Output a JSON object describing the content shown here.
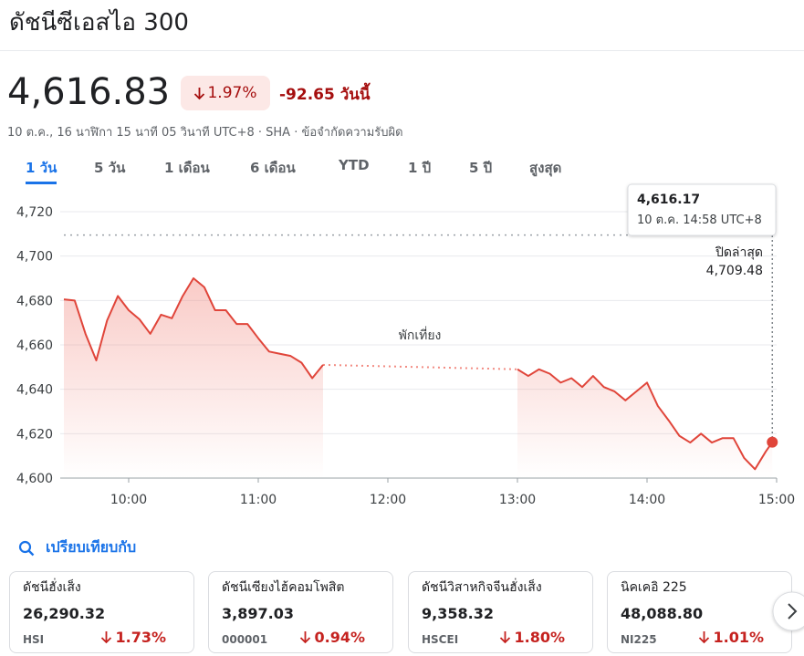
{
  "header": {
    "title": "ดัชนีซีเอสไอ 300",
    "price": "4,616.83",
    "change_percent": "1.97%",
    "change": "-92.65",
    "change_period": "วันนี้",
    "subtitle": "10 ต.ค., 16 นาฬิกา 15 นาที 05 วินาที UTC+8 · SHA · ข้อจำกัดความรับผิด"
  },
  "tabs": {
    "items": [
      "1 วัน",
      "5 วัน",
      "1 เดือน",
      "6 เดือน",
      "YTD",
      "1 ปี",
      "5 ปี",
      "สูงสุด"
    ],
    "active": 0
  },
  "chart_data": {
    "type": "line",
    "x": [
      "09:30",
      "09:35",
      "09:40",
      "09:45",
      "09:50",
      "09:55",
      "10:00",
      "10:05",
      "10:10",
      "10:15",
      "10:20",
      "10:25",
      "10:30",
      "10:35",
      "10:40",
      "10:45",
      "10:50",
      "10:55",
      "11:00",
      "11:05",
      "11:10",
      "11:15",
      "11:20",
      "11:25",
      "11:30",
      "12:00",
      "13:00",
      "13:05",
      "13:10",
      "13:15",
      "13:20",
      "13:25",
      "13:30",
      "13:35",
      "13:40",
      "13:45",
      "13:50",
      "13:55",
      "14:00",
      "14:05",
      "14:10",
      "14:15",
      "14:20",
      "14:25",
      "14:30",
      "14:35",
      "14:40",
      "14:45",
      "14:50",
      "14:55",
      "14:58"
    ],
    "series": [
      {
        "color": "#e0453a",
        "values": [
          4680.5,
          4680,
          4665,
          4653,
          4671,
          4682,
          4675.6,
          4671.5,
          4665,
          4673.6,
          4672,
          4682,
          4690,
          4686,
          4675.6,
          4675.6,
          4669.4,
          4669.4,
          4663,
          4657,
          4656,
          4655,
          4652,
          4645,
          4651,
          null,
          4649,
          4646,
          4649,
          4647,
          4643,
          4645,
          4641,
          4646,
          4641,
          4639,
          4635,
          4639,
          4643,
          4632.5,
          4626,
          4619,
          4616,
          4620,
          4616,
          4618,
          4618,
          4609,
          4604,
          4612,
          4616.17
        ]
      }
    ],
    "xlim": [
      "09:30",
      "15:00"
    ],
    "xticks": [
      "10:00",
      "11:00",
      "12:00",
      "13:00",
      "14:00",
      "15:00"
    ],
    "ylim": [
      4600,
      4720
    ],
    "yticks": [
      {
        "value": 4600,
        "label": "4,600"
      },
      {
        "value": 4620,
        "label": "4,620"
      },
      {
        "value": 4640,
        "label": "4,640"
      },
      {
        "value": 4660,
        "label": "4,660"
      },
      {
        "value": 4680,
        "label": "4,680"
      },
      {
        "value": 4700,
        "label": "4,700"
      },
      {
        "value": 4720,
        "label": "4,720"
      }
    ],
    "grid": true,
    "reference": {
      "label": "ปิดล่าสุด",
      "value": 4709.48,
      "value_label": "4,709.48"
    },
    "annotation": "พักเที่ยง",
    "tooltip": {
      "label": "4,616.17",
      "date": "10 ต.ค. 14:58 UTC+8"
    }
  },
  "compare": {
    "title": "เปรียบเทียบกับ",
    "items": [
      {
        "name": "ดัชนีฮั่งเส็ง",
        "value": "26,290.32",
        "symbol": "HSI",
        "change": "1.73%"
      },
      {
        "name": "ดัชนีเซียงไฮ้คอมโพสิต",
        "value": "3,897.03",
        "symbol": "000001",
        "change": "0.94%"
      },
      {
        "name": "ดัชนีวิสาหกิจจีนฮั่งเส็ง",
        "value": "9,358.32",
        "symbol": "HSCEI",
        "change": "1.80%"
      },
      {
        "name": "นิคเคอิ 225",
        "value": "48,088.80",
        "symbol": "NI225",
        "change": "1.01%"
      }
    ]
  }
}
